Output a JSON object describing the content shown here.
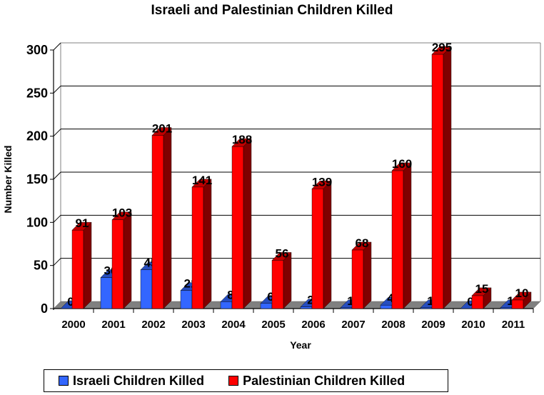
{
  "chart_data": {
    "type": "bar",
    "title": "Israeli and Palestinian Children Killed",
    "xlabel": "Year",
    "ylabel": "Number Killed",
    "ylim": [
      0,
      300
    ],
    "yticks": [
      0,
      50,
      100,
      150,
      200,
      250,
      300
    ],
    "grid": true,
    "legend_position": "bottom",
    "style": "3d-clustered",
    "categories": [
      "2000",
      "2001",
      "2002",
      "2003",
      "2004",
      "2005",
      "2006",
      "2007",
      "2008",
      "2009",
      "2010",
      "2011"
    ],
    "series": [
      {
        "name": "Israeli Children Killed",
        "color": "#3366ff",
        "values": [
          0,
          36,
          45,
          21,
          8,
          6,
          2,
          1,
          4,
          1,
          0,
          1
        ]
      },
      {
        "name": "Palestinian Children Killed",
        "color": "#ff0000",
        "values": [
          91,
          103,
          201,
          141,
          188,
          56,
          139,
          68,
          160,
          295,
          15,
          10
        ]
      }
    ]
  },
  "legend": {
    "items": [
      {
        "label": "Israeli Children Killed",
        "color": "#3366ff"
      },
      {
        "label": "Palestinian Children Killed",
        "color": "#ff0000"
      }
    ]
  }
}
